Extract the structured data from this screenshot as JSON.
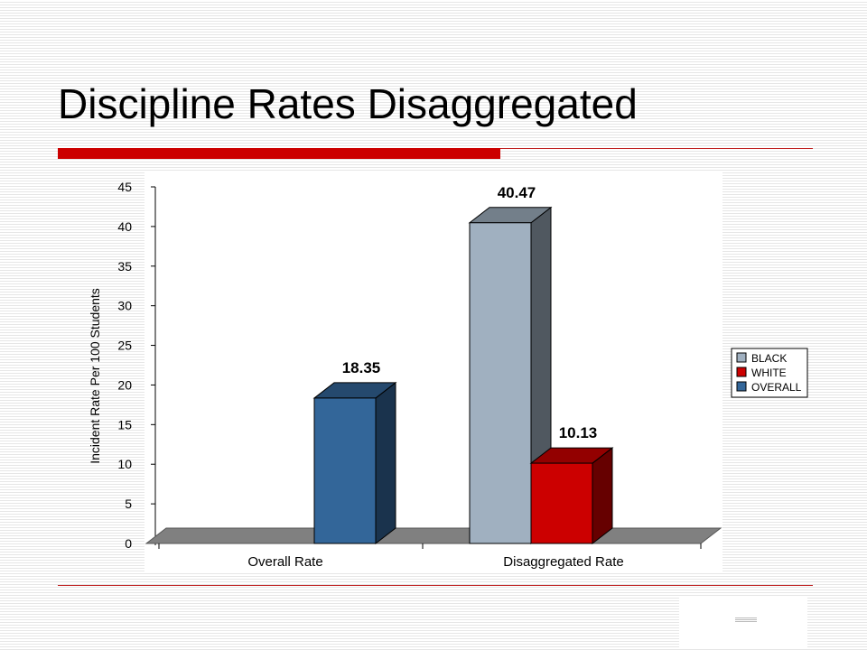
{
  "slide": {
    "title": "Discipline Rates Disaggregated"
  },
  "colors": {
    "accent": "#cc0000",
    "rule": "#c02020",
    "black_series": "#a0b0c0",
    "white_series": "#cc0000",
    "overall_series": "#336699",
    "floor": "#808080"
  },
  "chart_data": {
    "type": "bar",
    "title": "",
    "xlabel": "",
    "ylabel": "Incident Rate Per 100 Students",
    "ylim": [
      0,
      45
    ],
    "yticks": [
      "0",
      "5",
      "10",
      "15",
      "20",
      "25",
      "30",
      "35",
      "40",
      "45"
    ],
    "categories": [
      "Overall Rate",
      "Disaggregated Rate"
    ],
    "series": [
      {
        "name": "BLACK",
        "values": [
          null,
          40.47
        ]
      },
      {
        "name": "WHITE",
        "values": [
          null,
          10.13
        ]
      },
      {
        "name": "OVERALL",
        "values": [
          18.35,
          null
        ]
      }
    ],
    "data_labels": [
      "18.35",
      "40.47",
      "10.13"
    ],
    "legend_position": "right",
    "grid": false,
    "style": "3d-column"
  }
}
